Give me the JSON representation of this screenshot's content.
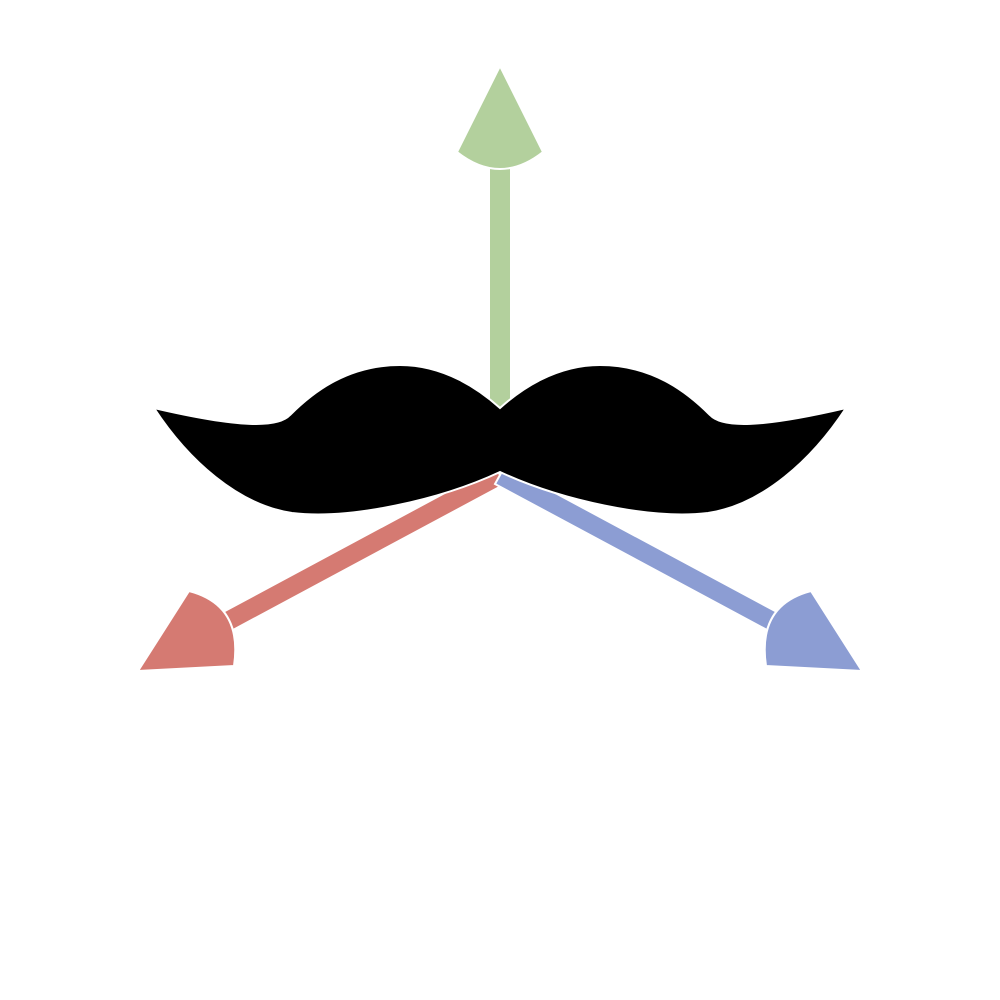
{
  "logo": {
    "icon": "mustache-axes-logo",
    "colors": {
      "background": "#ffffff",
      "mustache": "#000000",
      "outline": "#ffffff",
      "axis_up": "#b3d09d",
      "axis_left": "#d57a72",
      "axis_right": "#8c9dd3"
    }
  }
}
